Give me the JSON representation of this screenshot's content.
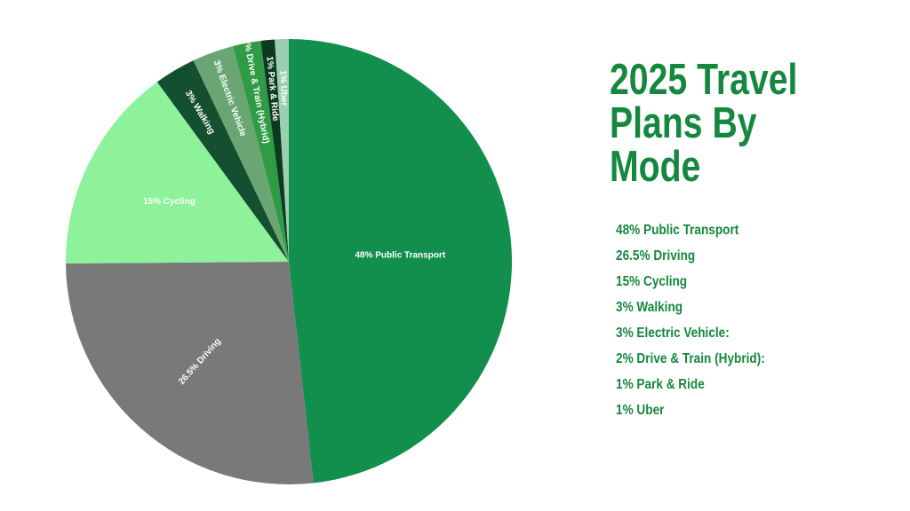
{
  "chart_data": {
    "type": "pie",
    "title": "2025 Travel Plans By Mode",
    "values": [
      48,
      26.5,
      15,
      3,
      3,
      2,
      1,
      1
    ],
    "value_labels": [
      "48% Public Transport",
      "26.5% Driving",
      "15% Cycling",
      "3% Walking",
      "3% Electric Vehicle",
      "2% Drive & Train (Hybrid)",
      "1% Park & Ride",
      "1% Uber"
    ],
    "legend_labels": [
      "48% Public Transport",
      "26.5% Driving",
      "15% Cycling",
      "3% Walking",
      "3% Electric Vehicle:",
      "2% Drive & Train (Hybrid):",
      "1% Park & Ride",
      "1% Uber"
    ],
    "colors": [
      "#138f4d",
      "#7a7979",
      "#8ef29b",
      "#14502f",
      "#6aa674",
      "#2f9b45",
      "#0c3a21",
      "#9acfb0"
    ]
  }
}
